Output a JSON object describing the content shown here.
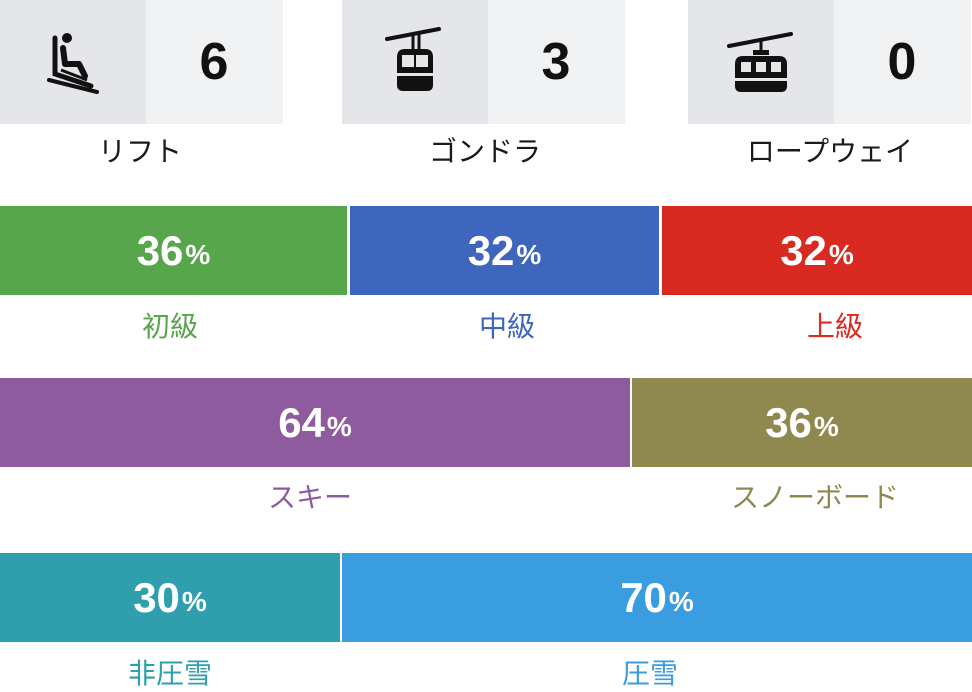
{
  "facilities": [
    {
      "icon": "chairlift-icon",
      "count": "6",
      "label": "リフト"
    },
    {
      "icon": "gondola-icon",
      "count": "3",
      "label": "ゴンドラ"
    },
    {
      "icon": "ropeway-icon",
      "count": "0",
      "label": "ロープウェイ"
    }
  ],
  "percent_sign": "%",
  "difficulty": [
    {
      "value": "36",
      "label": "初級",
      "color": "#58a64c"
    },
    {
      "value": "32",
      "label": "中級",
      "color": "#3e66bd"
    },
    {
      "value": "32",
      "label": "上級",
      "color": "#d92a22"
    }
  ],
  "style": [
    {
      "value": "64",
      "label": "スキー",
      "color": "#8e5c9e"
    },
    {
      "value": "36",
      "label": "スノーボード",
      "color": "#8f8950"
    }
  ],
  "grooming": [
    {
      "value": "30",
      "label": "非圧雪",
      "color": "#2f9fae"
    },
    {
      "value": "70",
      "label": "圧雪",
      "color": "#3a9de0"
    }
  ]
}
